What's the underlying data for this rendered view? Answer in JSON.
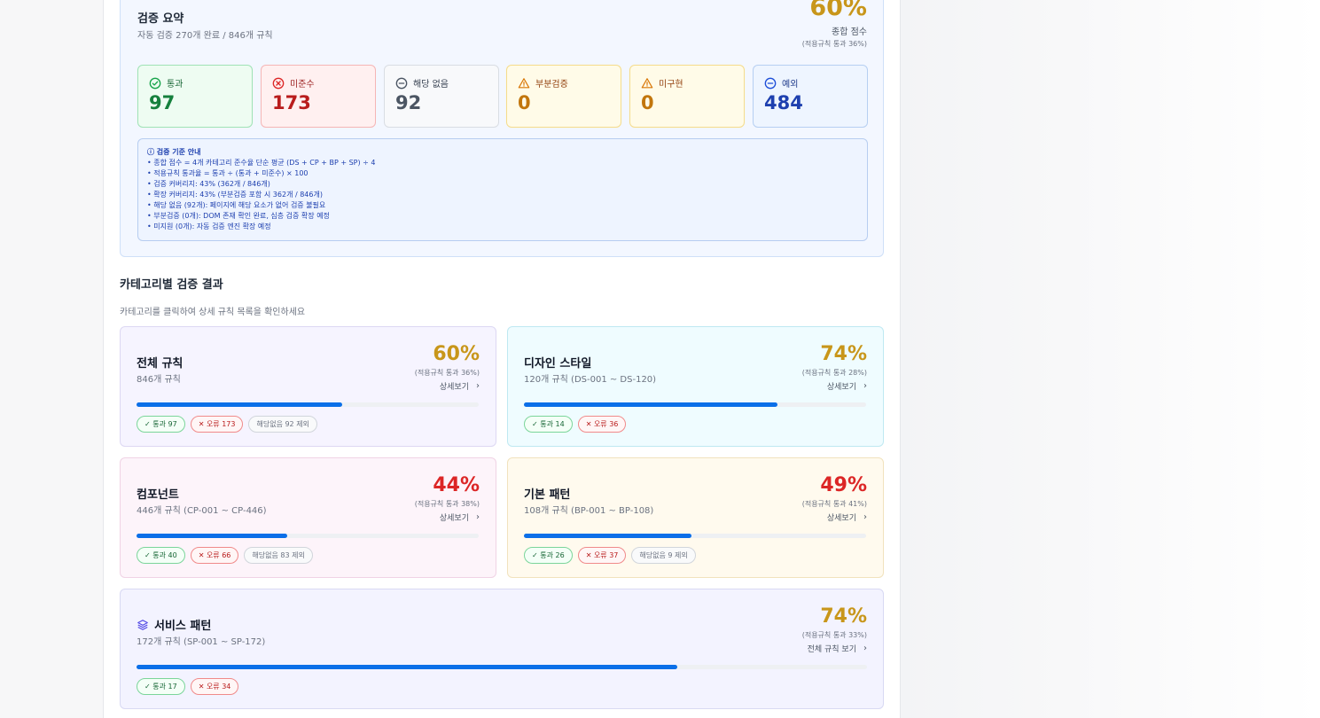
{
  "summary": {
    "title": "검증 요약",
    "subtitle": "자동 검증 270개 완료 / 846개 규칙",
    "score": "60%",
    "score_label": "종합 점수",
    "score_rate": "(적용규칙 통과 36%)"
  },
  "stats": [
    {
      "label": "통과",
      "value": "97",
      "icon": "check-circle-icon"
    },
    {
      "label": "미준수",
      "value": "173",
      "icon": "x-circle-icon"
    },
    {
      "label": "해당 없음",
      "value": "92",
      "icon": "minus-circle-icon"
    },
    {
      "label": "부분검증",
      "value": "0",
      "icon": "warning-triangle-icon"
    },
    {
      "label": "미구현",
      "value": "0",
      "icon": "warning-triangle-icon"
    },
    {
      "label": "예외",
      "value": "484",
      "icon": "minus-circle-icon"
    }
  ],
  "guide": {
    "title": "ⓘ 검증 기준 안내",
    "lines": [
      "• 종합 점수 = 4개 카테고리 준수율 단순 평균 (DS + CP + BP + SP) ÷ 4",
      "• 적용규칙 통과율 = 통과 ÷ (통과 + 미준수) × 100",
      "• 검증 커버리지: 43% (362개 / 846개)",
      "• 확장 커버리지: 43% (부분검증 포함 시 362개 / 846개)",
      "• 해당 없음 (92개): 페이지에 해당 요소가 없어 검증 불필요",
      "• 부분검증 (0개): DOM 존재 확인 완료, 심층 검증 확장 예정",
      "• 미지원 (0개): 자동 검증 엔진 확장 예정"
    ]
  },
  "section": {
    "title": "카테고리별 검증 결과",
    "subtitle": "카테고리를 클릭하여 상세 규칙 목록을 확인하세요"
  },
  "cards": [
    {
      "title": "전체 규칙",
      "sub": "846개 규칙",
      "pct": "60%",
      "rate": "(적용규칙 통과 36%)",
      "link": "상세보기",
      "progress": 0.6,
      "pass": "✓ 통과 97",
      "fail": "✕ 오류 173",
      "na": "해당없음 92 제외"
    },
    {
      "title": "디자인 스타일",
      "sub": "120개 규칙 (DS-001 ~ DS-120)",
      "pct": "74%",
      "rate": "(적용규칙 통과 28%)",
      "link": "상세보기",
      "progress": 0.74,
      "pass": "✓ 통과 14",
      "fail": "✕ 오류 36",
      "na": ""
    },
    {
      "title": "컴포넌트",
      "sub": "446개 규칙 (CP-001 ~ CP-446)",
      "pct": "44%",
      "rate": "(적용규칙 통과 38%)",
      "link": "상세보기",
      "progress": 0.44,
      "pass": "✓ 통과 40",
      "fail": "✕ 오류 66",
      "na": "해당없음 83 제외"
    },
    {
      "title": "기본 패턴",
      "sub": "108개 규칙 (BP-001 ~ BP-108)",
      "pct": "49%",
      "rate": "(적용규칙 통과 41%)",
      "link": "상세보기",
      "progress": 0.49,
      "pass": "✓ 통과 26",
      "fail": "✕ 오류 37",
      "na": "해당없음 9 제외"
    },
    {
      "title": "서비스 패턴",
      "sub": "172개 규칙 (SP-001 ~ SP-172)",
      "pct": "74%",
      "rate": "(적용규칙 통과 33%)",
      "link": "전체 규칙 보기",
      "progress": 0.74,
      "pass": "✓ 통과 17",
      "fail": "✕ 오류 34",
      "na": ""
    }
  ],
  "colors": {
    "accent": "#0b6fe8",
    "gold": "#c8961a",
    "red": "#dc2626"
  }
}
